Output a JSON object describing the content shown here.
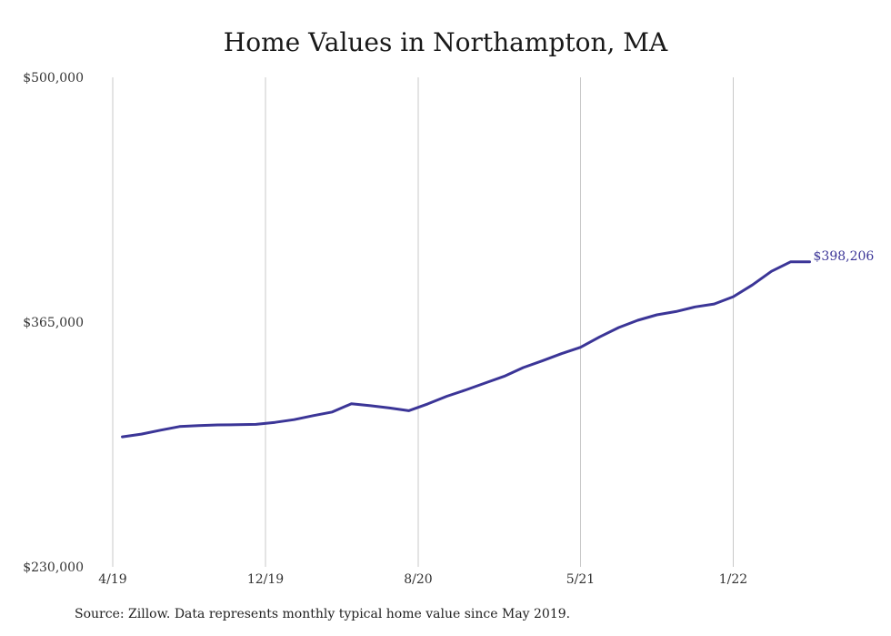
{
  "chart_data": {
    "type": "line",
    "title": "Home Values in Northampton, MA",
    "xlabel": "",
    "ylabel": "",
    "ylim": [
      230000,
      500000
    ],
    "y_ticks": [
      "$500,000",
      "$365,000",
      "$230,000"
    ],
    "y_tick_values": [
      500000,
      365000,
      230000
    ],
    "x_ticks": [
      "4/19",
      "12/19",
      "8/20",
      "5/21",
      "1/22"
    ],
    "x_tick_positions": [
      0,
      8,
      16,
      24.5,
      32.5
    ],
    "grid": "vertical",
    "line_color": "#3b3597",
    "end_label": "$398,206",
    "series": [
      {
        "x": [
          0.5,
          1.5,
          2.5,
          3.5,
          4.5,
          5.5,
          6.5,
          7.5,
          8.5,
          9.5,
          10.5,
          11.5,
          12.5,
          13.5,
          14.5,
          15.5,
          16.5,
          17.5,
          18.5,
          19.5,
          20.5,
          21.5,
          22.5,
          23.5,
          24.5,
          25.5,
          26.5,
          27.5,
          28.5,
          29.5,
          30.5,
          31.5,
          32.5,
          33.5,
          34.5,
          35.5,
          36.5
        ],
        "values": [
          301700,
          303200,
          305400,
          307400,
          307900,
          308300,
          308400,
          308600,
          309700,
          311200,
          313400,
          315400,
          320000,
          318900,
          317600,
          316100,
          319900,
          324100,
          327600,
          331400,
          335100,
          339900,
          343600,
          347600,
          351100,
          356800,
          362000,
          366000,
          369000,
          370800,
          373400,
          375000,
          379000,
          385500,
          393000,
          398206,
          398206
        ]
      }
    ]
  },
  "footer": {
    "source": "Source: Zillow. Data represents monthly typical home value since May 2019."
  }
}
